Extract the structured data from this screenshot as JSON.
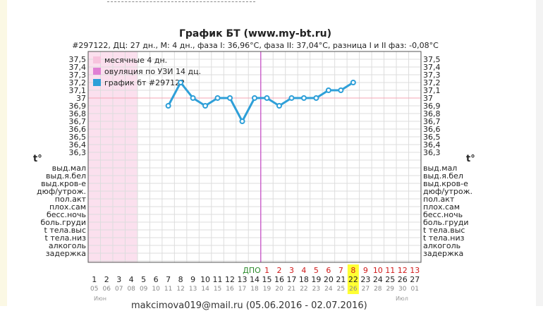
{
  "chart_data": {
    "type": "line",
    "title": "График БТ (www.my-bt.ru)",
    "subtitle": "#297122, ДЦ: 27 дн., М: 4 дн., фаза I: 36,96°C, фаза II: 37,04°C, разница I и II фаз: -0,08°C",
    "axis_label": "t°",
    "y_ticks": [
      "37,5",
      "37,4",
      "37,3",
      "37,2",
      "37,1",
      "37",
      "36,9",
      "36,8",
      "36,7",
      "36,6",
      "36,5",
      "36,4",
      "36,3"
    ],
    "ylim": [
      36.3,
      37.5
    ],
    "symptom_rows": [
      "выд.мал",
      "выд.я.бел",
      "выд.кров-е",
      "дюф/утрож.",
      "пол.акт",
      "плох.сам",
      "бесс.ночь",
      "боль.груди",
      "t тела.выс",
      "t тела.низ",
      "алкоголь",
      "задержка"
    ],
    "legend": [
      {
        "label": "месячные 4 дн.",
        "color": "#f7c3dd"
      },
      {
        "label": "овуляция по УЗИ 14 дц.",
        "color": "#e07fd4"
      },
      {
        "label": "график бт #297122",
        "color": "#2e9fd8"
      }
    ],
    "cycle_days": [
      "1",
      "2",
      "3",
      "4",
      "5",
      "6",
      "7",
      "8",
      "9",
      "10",
      "11",
      "12",
      "13",
      "14",
      "15",
      "16",
      "17",
      "18",
      "19",
      "20",
      "21",
      "22",
      "23",
      "24",
      "25",
      "26",
      "27"
    ],
    "dates": [
      "05",
      "06",
      "07",
      "08",
      "09",
      "10",
      "11",
      "12",
      "13",
      "14",
      "15",
      "16",
      "17",
      "18",
      "19",
      "20",
      "21",
      "22",
      "23",
      "24",
      "25",
      "26",
      "27",
      "28",
      "29",
      "30",
      "01"
    ],
    "month_start": "Июн",
    "month_end": "Июл",
    "dpo_label": "ДПО",
    "dpo": [
      "1",
      "2",
      "3",
      "4",
      "5",
      "6",
      "7",
      "8",
      "9",
      "10",
      "11",
      "12",
      "13"
    ],
    "series": [
      {
        "name": "график бт #297122",
        "x": [
          7,
          8,
          9,
          10,
          11,
          12,
          13,
          14,
          15,
          16,
          17,
          18,
          19,
          20,
          21,
          22
        ],
        "values": [
          36.9,
          37.2,
          37.0,
          36.9,
          37.0,
          37.0,
          36.7,
          37.0,
          37.0,
          36.9,
          37.0,
          37.0,
          37.0,
          37.1,
          37.1,
          37.2
        ]
      }
    ],
    "menstruation_days": [
      1,
      2,
      3,
      4
    ],
    "ovulation_day": 14,
    "highlight_day": 22,
    "colors": {
      "line": "#2e9fd8",
      "ovulation_line": "#cc66cc",
      "menstruation_fill": "#fbe0ee",
      "grid": "#dddddd",
      "dpo_red": "#d11a1a",
      "dpo_green": "#2a8a2a",
      "highlight": "#ffff33"
    }
  },
  "footer_text": "makcimova019@mail.ru (05.06.2016 - 02.07.2016)"
}
